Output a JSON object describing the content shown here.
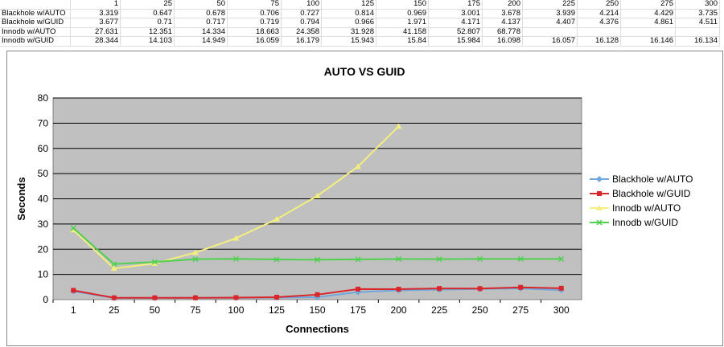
{
  "sheet": {
    "header": [
      "",
      "1",
      "25",
      "50",
      "75",
      "100",
      "125",
      "150",
      "175",
      "200",
      "225",
      "250",
      "275",
      "300"
    ],
    "rows": [
      [
        "Blackhole w/AUTO",
        "3.319",
        "0.647",
        "0.678",
        "0.706",
        "0.727",
        "0.814",
        "0.969",
        "3.001",
        "3.678",
        "3.939",
        "4.214",
        "4.429",
        "3.735"
      ],
      [
        "Blackhole w/GUID",
        "3.677",
        "0.71",
        "0.717",
        "0.719",
        "0.794",
        "0.966",
        "1.971",
        "4.171",
        "4.137",
        "4.407",
        "4.376",
        "4.861",
        "4.511"
      ],
      [
        "Innodb w/AUTO",
        "27.631",
        "12.351",
        "14.334",
        "18.663",
        "24.358",
        "31.928",
        "41.158",
        "52.807",
        "68.778",
        "",
        "",
        "",
        ""
      ],
      [
        "Innodb w/GUID",
        "28.344",
        "14.103",
        "14.949",
        "16.059",
        "16.179",
        "15.943",
        "15.84",
        "15.984",
        "16.098",
        "16.057",
        "16.128",
        "16.146",
        "16.134"
      ]
    ]
  },
  "chart_data": {
    "type": "line",
    "title": "AUTO VS GUID",
    "xlabel": "Connections",
    "ylabel": "Seconds",
    "ylim": [
      0,
      80
    ],
    "yticks": [
      "0",
      "10",
      "20",
      "30",
      "40",
      "50",
      "60",
      "70",
      "80"
    ],
    "categories": [
      "1",
      "25",
      "50",
      "75",
      "100",
      "125",
      "150",
      "175",
      "200",
      "225",
      "250",
      "275",
      "300"
    ],
    "grid": true,
    "legend": "right",
    "series": [
      {
        "name": "Blackhole w/AUTO",
        "color": "#6fa8dc",
        "marker": "diamond",
        "values": [
          3.319,
          0.647,
          0.678,
          0.706,
          0.727,
          0.814,
          0.969,
          3.001,
          3.678,
          3.939,
          4.214,
          4.429,
          3.735
        ]
      },
      {
        "name": "Blackhole w/GUID",
        "color": "#d9262a",
        "marker": "square",
        "values": [
          3.677,
          0.71,
          0.717,
          0.719,
          0.794,
          0.966,
          1.971,
          4.171,
          4.137,
          4.407,
          4.376,
          4.861,
          4.511
        ]
      },
      {
        "name": "Innodb w/AUTO",
        "color": "#f3ee7e",
        "marker": "triangle",
        "values": [
          27.631,
          12.351,
          14.334,
          18.663,
          24.358,
          31.928,
          41.158,
          52.807,
          68.778,
          null,
          null,
          null,
          null
        ]
      },
      {
        "name": "Innodb w/GUID",
        "color": "#4fd04f",
        "marker": "x",
        "values": [
          28.344,
          14.103,
          14.949,
          16.059,
          16.179,
          15.943,
          15.84,
          15.984,
          16.098,
          16.057,
          16.128,
          16.146,
          16.134
        ]
      }
    ]
  }
}
